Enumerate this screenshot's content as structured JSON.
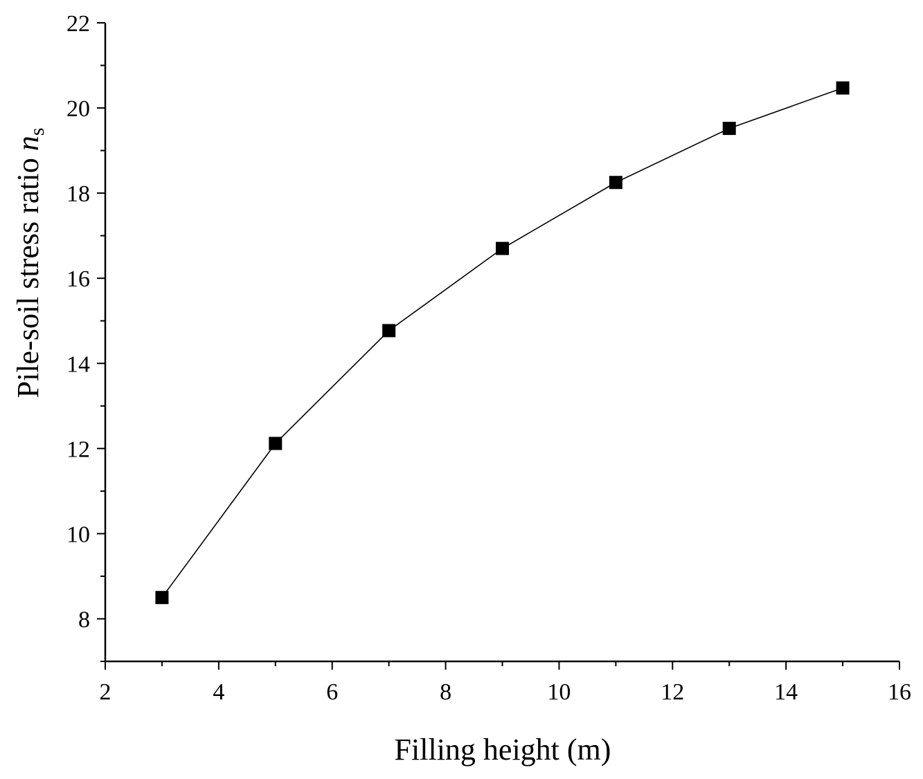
{
  "chart_data": {
    "type": "line",
    "title": "",
    "xlabel": "Filling height (m)",
    "ylabel": "Pile-soil stress ratio",
    "ylabel_symbol": "n",
    "ylabel_subscript": "s",
    "xlim": [
      2,
      16
    ],
    "ylim": [
      7,
      22
    ],
    "xticks": [
      2,
      4,
      6,
      8,
      10,
      12,
      14,
      16
    ],
    "yticks": [
      8,
      10,
      12,
      14,
      16,
      18,
      20,
      22
    ],
    "x_minor_step": 1,
    "y_minor_step": 1,
    "grid": false,
    "legend": "none",
    "series": [
      {
        "marker": "square",
        "color": "#000000",
        "x": [
          3,
          5,
          7,
          9,
          11,
          13,
          15
        ],
        "y": [
          8.5,
          12.12,
          14.77,
          16.7,
          18.25,
          19.52,
          20.47
        ]
      }
    ]
  }
}
